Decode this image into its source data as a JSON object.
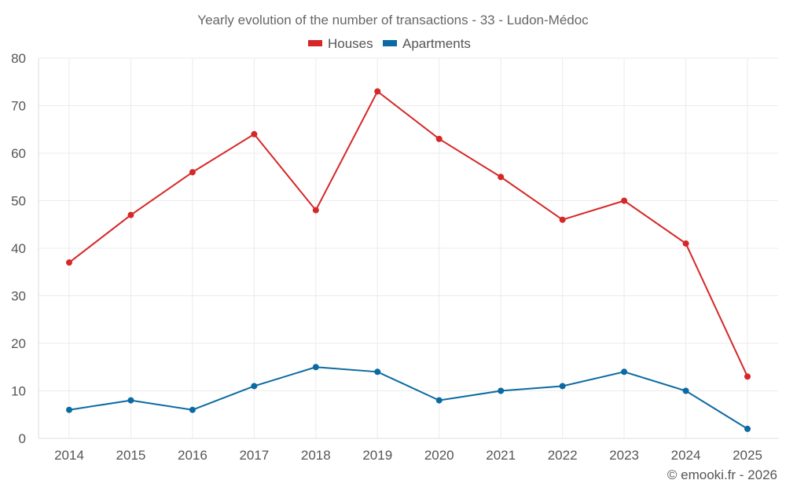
{
  "chart_data": {
    "type": "line",
    "title": "Yearly evolution of the number of transactions - 33 - Ludon-Médoc",
    "xlabel": "",
    "ylabel": "",
    "categories": [
      "2014",
      "2015",
      "2016",
      "2017",
      "2018",
      "2019",
      "2020",
      "2021",
      "2022",
      "2023",
      "2024",
      "2025"
    ],
    "ylim": [
      0,
      80
    ],
    "yticks": [
      0,
      10,
      20,
      30,
      40,
      50,
      60,
      70,
      80
    ],
    "grid": true,
    "legend_position": "top-center",
    "series": [
      {
        "name": "Houses",
        "color": "#d62728",
        "values": [
          37,
          47,
          56,
          64,
          48,
          73,
          63,
          55,
          46,
          50,
          41,
          13
        ]
      },
      {
        "name": "Apartments",
        "color": "#0b6aa2",
        "values": [
          6,
          8,
          6,
          11,
          15,
          14,
          8,
          10,
          11,
          14,
          10,
          2
        ]
      }
    ]
  },
  "footer": {
    "credit": "© emooki.fr - 2026"
  }
}
